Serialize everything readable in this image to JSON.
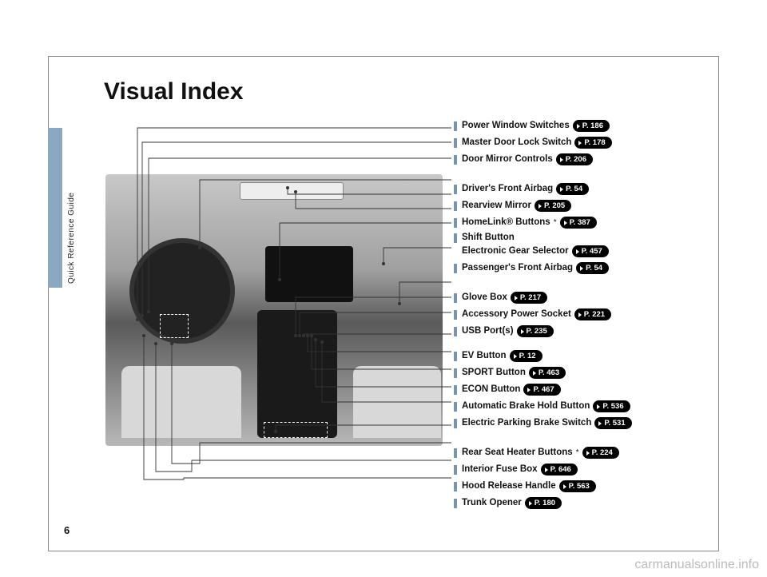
{
  "page": {
    "title": "Visual Index",
    "number": "6",
    "side_label": "Quick Reference Guide",
    "watermark": "carmanualsonline.info"
  },
  "colors": {
    "tab": "#8aa8c0",
    "marker": "#7a94ad",
    "pill_bg": "#000000",
    "pill_fg": "#ffffff"
  },
  "labels": {
    "top": [
      {
        "text": "Power Window Switches",
        "page": "P. 186",
        "star": false
      },
      {
        "text": "Master Door Lock Switch",
        "page": "P. 178",
        "star": false
      },
      {
        "text": "Door Mirror Controls",
        "page": "P. 206",
        "star": false
      }
    ],
    "upper": [
      {
        "text": "Driver's Front Airbag",
        "page": "P. 54",
        "star": false
      },
      {
        "text": "Rearview Mirror",
        "page": "P. 205",
        "star": false
      },
      {
        "text": "HomeLink® Buttons",
        "page": "P. 387",
        "star": true
      },
      {
        "text": "Shift Button",
        "sub_text": "Electronic Gear Selector",
        "page": "P. 457",
        "star": false
      },
      {
        "text": "Passenger's Front Airbag",
        "page": "P. 54",
        "star": false
      }
    ],
    "mid": [
      {
        "text": "Glove Box",
        "page": "P. 217",
        "star": false
      },
      {
        "text": "Accessory Power Socket",
        "page": "P. 221",
        "star": false
      },
      {
        "text": "USB Port(s)",
        "page": "P. 235",
        "star": false
      }
    ],
    "mid2": [
      {
        "text": "EV Button",
        "page": "P. 12",
        "star": false
      },
      {
        "text": "SPORT Button",
        "page": "P. 463",
        "star": false
      },
      {
        "text": "ECON Button",
        "page": "P. 467",
        "star": false
      },
      {
        "text": "Automatic Brake Hold Button",
        "page": "P. 536",
        "star": false
      },
      {
        "text": "Electric Parking Brake Switch",
        "page": "P. 531",
        "star": false
      }
    ],
    "bottom": [
      {
        "text": "Rear Seat Heater Buttons",
        "page": "P. 224",
        "star": true
      },
      {
        "text": "Interior Fuse Box",
        "page": "P. 646",
        "star": false
      },
      {
        "text": "Hood Release Handle",
        "page": "P. 563",
        "star": false
      },
      {
        "text": "Trunk Opener",
        "page": "P. 180",
        "star": false
      }
    ]
  }
}
